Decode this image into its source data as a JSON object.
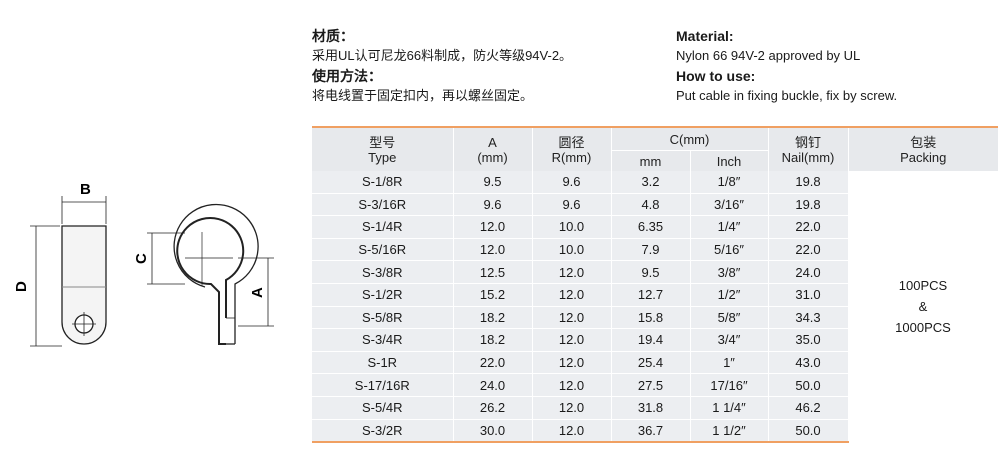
{
  "info_cn": {
    "material_title": "材质：",
    "material_text": "采用UL认可尼龙66料制成，防火等级94V-2。",
    "usage_title": "使用方法：",
    "usage_text": "将电线置于固定扣内，再以螺丝固定。"
  },
  "info_en": {
    "material_title": "Material:",
    "material_text": "Nylon 66 94V-2 approved by UL",
    "usage_title": "How to use:",
    "usage_text": "Put cable in fixing buckle, fix by screw."
  },
  "drawing": {
    "label_b": "B",
    "label_d": "D",
    "label_c": "C",
    "label_a": "A"
  },
  "table": {
    "headers": {
      "type_cn": "型号",
      "type_en": "Type",
      "a": "A",
      "a_unit": "(mm)",
      "r_cn": "圆径",
      "r_en": "R(mm)",
      "c": "C(mm)",
      "c_mm": "mm",
      "c_inch": "Inch",
      "nail_cn": "钢钉",
      "nail_en": "Nail(mm)",
      "pack_cn": "包装",
      "pack_en": "Packing"
    },
    "rows": [
      [
        "S-1/8R",
        "9.5",
        "9.6",
        "3.2",
        "1/8″",
        "19.8"
      ],
      [
        "S-3/16R",
        "9.6",
        "9.6",
        "4.8",
        "3/16″",
        "19.8"
      ],
      [
        "S-1/4R",
        "12.0",
        "10.0",
        "6.35",
        "1/4″",
        "22.0"
      ],
      [
        "S-5/16R",
        "12.0",
        "10.0",
        "7.9",
        "5/16″",
        "22.0"
      ],
      [
        "S-3/8R",
        "12.5",
        "12.0",
        "9.5",
        "3/8″",
        "24.0"
      ],
      [
        "S-1/2R",
        "15.2",
        "12.0",
        "12.7",
        "1/2″",
        "31.0"
      ],
      [
        "S-5/8R",
        "18.2",
        "12.0",
        "15.8",
        "5/8″",
        "34.3"
      ],
      [
        "S-3/4R",
        "18.2",
        "12.0",
        "19.4",
        "3/4″",
        "35.0"
      ],
      [
        "S-1R",
        "22.0",
        "12.0",
        "25.4",
        "1″",
        "43.0"
      ],
      [
        "S-17/16R",
        "24.0",
        "12.0",
        "27.5",
        "17/16″",
        "50.0"
      ],
      [
        "S-5/4R",
        "26.2",
        "12.0",
        "31.8",
        "1 1/4″",
        "46.2"
      ],
      [
        "S-3/2R",
        "30.0",
        "12.0",
        "36.7",
        "1 1/2″",
        "50.0"
      ]
    ],
    "packing": [
      "100PCS",
      "&",
      "1000PCS"
    ]
  },
  "colors": {
    "accent": "#f0a062",
    "row_bg": "#eceef1",
    "header_bg": "#e7e9ec"
  }
}
